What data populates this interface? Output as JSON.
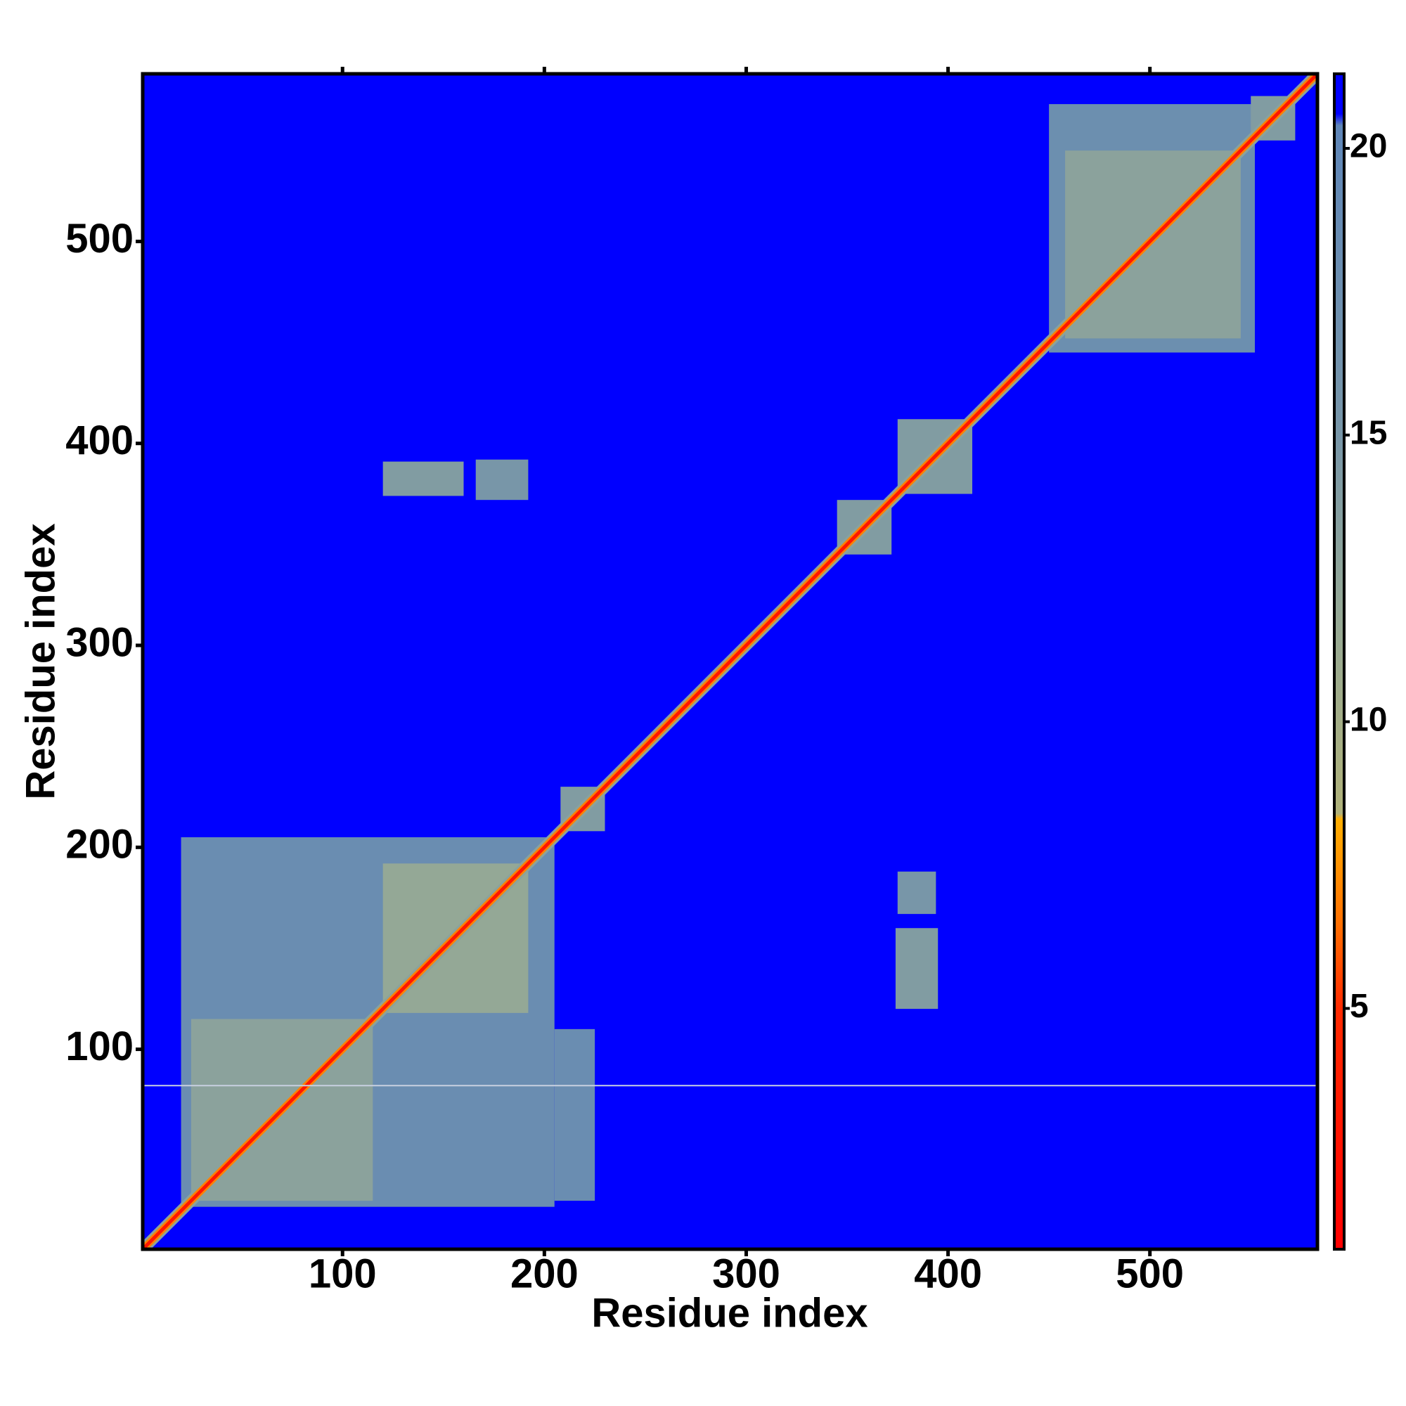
{
  "chart_data": {
    "type": "heatmap",
    "xlabel": "Residue index",
    "ylabel": "Residue index",
    "xlim": [
      1,
      583
    ],
    "ylim": [
      1,
      583
    ],
    "xticks": [
      100,
      200,
      300,
      400,
      500
    ],
    "yticks": [
      100,
      200,
      300,
      400,
      500
    ],
    "fill_value": 21.3,
    "colorscale": [
      [
        0.8,
        "#ff0000"
      ],
      [
        5,
        "#ff2a00"
      ],
      [
        6.5,
        "#ff7000"
      ],
      [
        8.3,
        "#ffae00"
      ],
      [
        8.4,
        "#b0b27a"
      ],
      [
        12,
        "#94a896"
      ],
      [
        15,
        "#7896a8"
      ],
      [
        20.4,
        "#5f86b8"
      ],
      [
        20.6,
        "#0000ff"
      ],
      [
        21.3,
        "#0000ff"
      ]
    ],
    "colorbar": {
      "lim": [
        0.8,
        21.3
      ],
      "ticks": [
        5,
        10,
        15,
        20
      ]
    },
    "cells": [
      {
        "x": [
          20,
          205
        ],
        "y": [
          22,
          205
        ],
        "value": 18
      },
      {
        "x": [
          205,
          225
        ],
        "y": [
          25,
          110
        ],
        "value": 18
      },
      {
        "x": [
          25,
          115
        ],
        "y": [
          25,
          115
        ],
        "value": 13
      },
      {
        "x": [
          120,
          192
        ],
        "y": [
          118,
          192
        ],
        "value": 12
      },
      {
        "x": [
          450,
          552
        ],
        "y": [
          445,
          568
        ],
        "value": 17.5
      },
      {
        "x": [
          458,
          545
        ],
        "y": [
          452,
          545
        ],
        "value": 13
      },
      {
        "x": [
          120,
          160
        ],
        "y": [
          374,
          391
        ],
        "value": 14
      },
      {
        "x": [
          166,
          192
        ],
        "y": [
          372,
          392
        ],
        "value": 15
      },
      {
        "x": [
          374,
          395
        ],
        "y": [
          120,
          160
        ],
        "value": 14
      },
      {
        "x": [
          375,
          394
        ],
        "y": [
          167,
          188
        ],
        "value": 15
      },
      {
        "x": [
          208,
          230
        ],
        "y": [
          208,
          230
        ],
        "value": 14
      },
      {
        "x": [
          345,
          372
        ],
        "y": [
          345,
          372
        ],
        "value": 14
      },
      {
        "x": [
          375,
          412
        ],
        "y": [
          375,
          412
        ],
        "value": 14
      },
      {
        "x": [
          550,
          572
        ],
        "y": [
          550,
          572
        ],
        "value": 14
      }
    ],
    "bands": [
      {
        "offset": 4,
        "value": 13
      },
      {
        "offset": 2.5,
        "value": 7
      },
      {
        "offset": 1.2,
        "value": 3
      }
    ],
    "hlines": [
      82
    ]
  }
}
